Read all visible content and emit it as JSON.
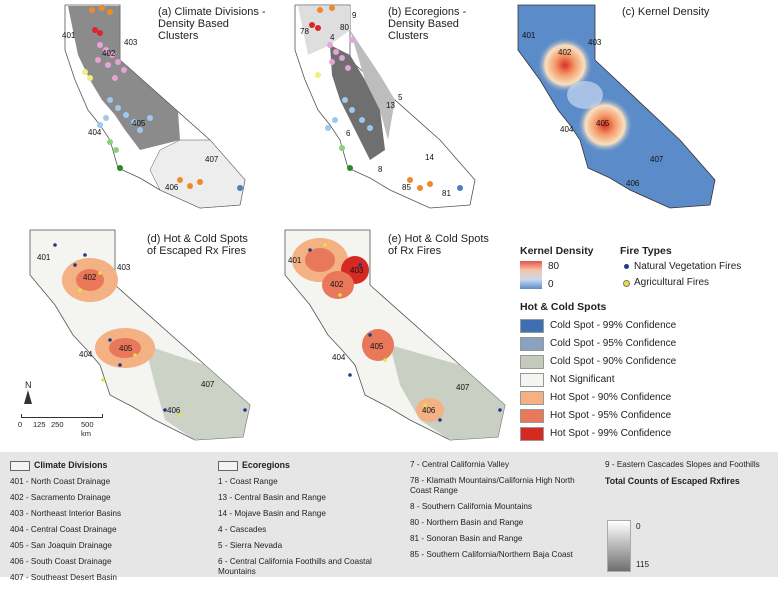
{
  "panels": {
    "a": {
      "title": "(a) Climate Divisions -\nDensity Based\nClusters"
    },
    "b": {
      "title": "(b) Ecoregions -\nDensity Based\nClusters"
    },
    "c": {
      "title": "(c) Kernel Density"
    },
    "d": {
      "title": "(d) Hot & Cold Spots\nof Escaped Rx Fires"
    },
    "e": {
      "title": "(e) Hot & Cold Spots\nof Rx Fires"
    }
  },
  "map_labels": {
    "a": [
      "401",
      "402",
      "403",
      "404",
      "405",
      "406",
      "407"
    ],
    "b": [
      "9",
      "78",
      "80",
      "4",
      "5",
      "13",
      "6",
      "14",
      "8",
      "85",
      "81"
    ],
    "c": [
      "401",
      "402",
      "403",
      "404",
      "405",
      "407",
      "406"
    ],
    "d": [
      "401",
      "402",
      "403",
      "404",
      "405",
      "407",
      "406"
    ],
    "e": [
      "401",
      "402",
      "403",
      "404",
      "405",
      "407",
      "406"
    ]
  },
  "legend": {
    "kernel_density": {
      "title": "Kernel Density",
      "max": "80",
      "min": "0"
    },
    "fire_types": {
      "title": "Fire Types",
      "items": [
        {
          "label": "Natural Vegetation Fires",
          "color": "#1f3a8a"
        },
        {
          "label": "Agricultural Fires",
          "color": "#e8e23a"
        }
      ]
    },
    "hot_cold": {
      "title": "Hot & Cold Spots",
      "items": [
        {
          "label": "Cold Spot - 99% Confidence",
          "color": "#3f6fb0"
        },
        {
          "label": "Cold Spot - 95% Confidence",
          "color": "#8aa2bf"
        },
        {
          "label": "Cold Spot - 90% Confidence",
          "color": "#c4cbbd"
        },
        {
          "label": "Not Significant",
          "color": "#f4f4f0"
        },
        {
          "label": "Hot Spot - 90% Confidence",
          "color": "#f3b184"
        },
        {
          "label": "Hot Spot - 95% Confidence",
          "color": "#e9785a"
        },
        {
          "label": "Hot Spot - 99% Confidence",
          "color": "#d42a22"
        }
      ]
    }
  },
  "scale": {
    "north": "N",
    "ticks": [
      "0",
      "125",
      "250",
      "500 km"
    ]
  },
  "bottom": {
    "climate": {
      "title": "Climate Divisions",
      "items": [
        "401 - North Coast Drainage",
        "402 - Sacramento Drainage",
        "403 - Northeast Interior Basins",
        "404 - Central Coast Drainage",
        "405 - San Joaquin Drainage",
        "406 - South Coast Drainage",
        "407 - Southeast Desert Basin"
      ]
    },
    "eco": {
      "title": "Ecoregions",
      "items": [
        "1 - Coast Range",
        "13 - Central Basin and Range",
        "14 - Mojave Basin and Range",
        "4 - Cascades",
        "5 - Sierra Nevada",
        "6 - Central California Foothills and Coastal Mountains"
      ]
    },
    "eco2": {
      "items": [
        "7 - Central California Valley",
        "78 - Klamath Mountains/California High North Coast Range",
        "8 - Southern California Mountains",
        "80 - Northern Basin and Range",
        "81 - Sonoran Basin and Range",
        "85 - Southern California/Northern Baja Coast"
      ]
    },
    "eco3": {
      "items": [
        "9 - Eastern Cascades Slopes and Foothills"
      ]
    },
    "counts": {
      "title": "Total Counts of Escaped Rxfires",
      "min": "0",
      "max": "115"
    }
  },
  "colors": {
    "cluster_pink": "#e7a2d8",
    "cluster_blue": "#9ec9ee",
    "cluster_orange": "#ef8a2a",
    "cluster_green": "#8fcf7a",
    "cluster_yellow": "#f2f07a",
    "cluster_red": "#d9262b",
    "dark_region": "#6f6f6f",
    "kd_base": "#5b8bc9"
  }
}
